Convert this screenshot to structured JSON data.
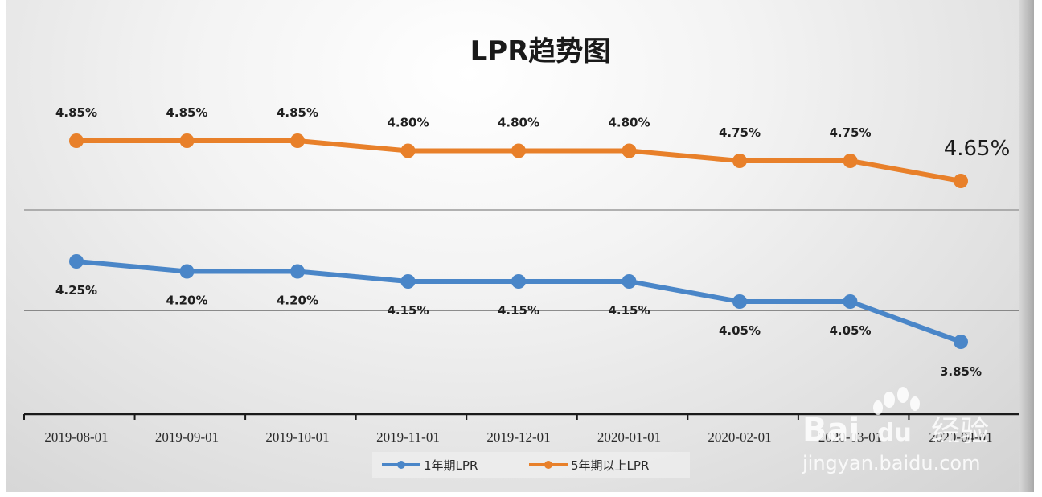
{
  "chart_data": {
    "type": "line",
    "title": "LPR趋势图",
    "x": [
      "2019-08-01",
      "2019-09-01",
      "2019-10-01",
      "2019-11-01",
      "2019-12-01",
      "2020-01-01",
      "2020-02-01",
      "2020-03-01",
      "2020-04-01"
    ],
    "series": [
      {
        "name": "1年期LPR",
        "color": "#4a86c8",
        "values": [
          4.25,
          4.2,
          4.2,
          4.15,
          4.15,
          4.15,
          4.05,
          4.05,
          3.85
        ],
        "labels": [
          "4.25%",
          "4.20%",
          "4.20%",
          "4.15%",
          "4.15%",
          "4.15%",
          "4.05%",
          "4.05%",
          "3.85%"
        ]
      },
      {
        "name": "5年期以上LPR",
        "color": "#e8802a",
        "values": [
          4.85,
          4.85,
          4.85,
          4.8,
          4.8,
          4.8,
          4.75,
          4.75,
          4.65
        ],
        "labels": [
          "4.85%",
          "4.85%",
          "4.85%",
          "4.80%",
          "4.80%",
          "4.80%",
          "4.75%",
          "4.75%",
          "4.65%"
        ]
      }
    ],
    "xlabel": "",
    "ylabel": "",
    "grid": true,
    "legend": "bottom-center",
    "axis_break": "y-axis split into two bands (upper for 5年期以上LPR, lower for 1年期LPR)"
  },
  "watermark": {
    "brand": "Bai",
    "brand2": "du",
    "cn": "经验",
    "url": "jingyan.baidu.com"
  }
}
